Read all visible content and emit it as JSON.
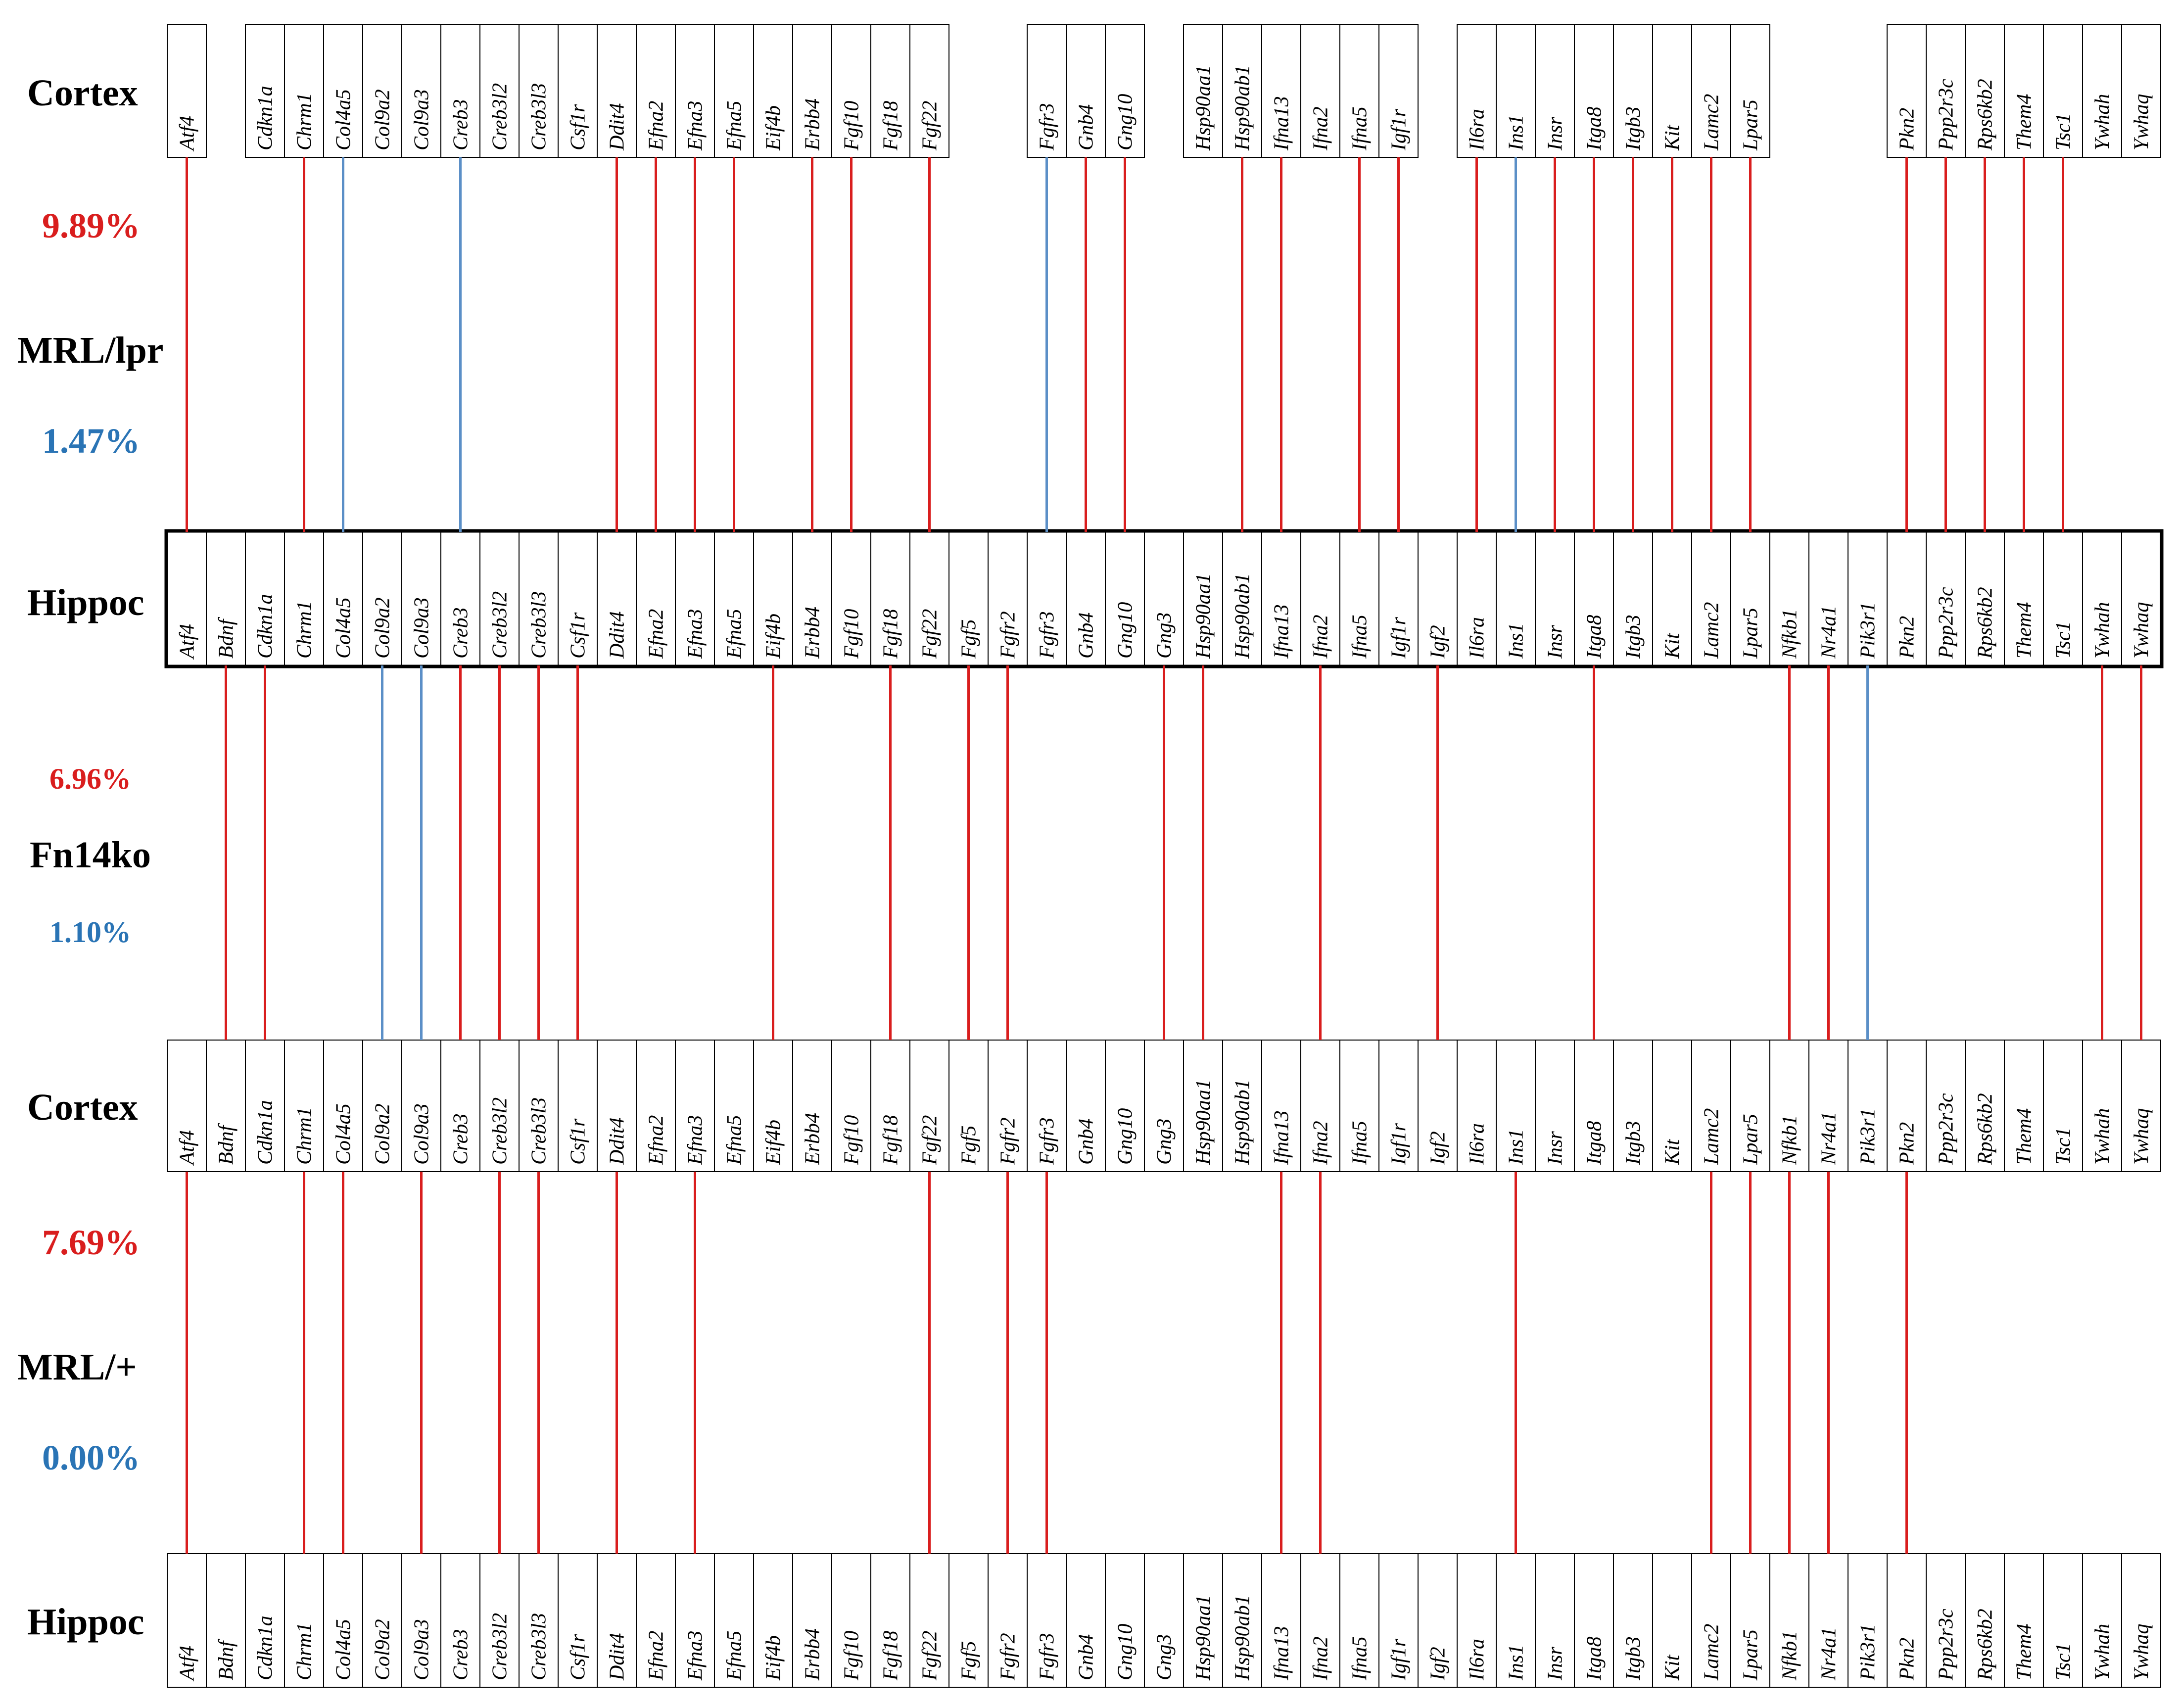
{
  "colors": {
    "up": "#d91e1e",
    "down": "#5b8fc7",
    "border": "#000000"
  },
  "genes": [
    "Atf4",
    "Bdnf",
    "Cdkn1a",
    "Chrm1",
    "Col4a5",
    "Col9a2",
    "Col9a3",
    "Creb3",
    "Creb3l2",
    "Creb3l3",
    "Csf1r",
    "Ddit4",
    "Efna2",
    "Efna3",
    "Efna5",
    "Eif4b",
    "Erbb4",
    "Fgf10",
    "Fgf18",
    "Fgf22",
    "Fgf5",
    "Fgfr2",
    "Fgfr3",
    "Gnb4",
    "Gng10",
    "Gng3",
    "Hsp90aa1",
    "Hsp90ab1",
    "Ifna13",
    "Ifna2",
    "Ifna5",
    "Igf1r",
    "Igf2",
    "Il6ra",
    "Ins1",
    "Insr",
    "Itga8",
    "Itgb3",
    "Kit",
    "Lamc2",
    "Lpar5",
    "Nfkb1",
    "Nr4a1",
    "Pik3r1",
    "Pkn2",
    "Ppp2r3c",
    "Rps6kb2",
    "Them4",
    "Tsc1",
    "Ywhah",
    "Ywhaq"
  ],
  "rows": [
    {
      "region": "Cortex",
      "missing": [
        "Bdnf",
        "Fgf5",
        "Fgfr2",
        "Gng3",
        "Igf2",
        "Nfkb1",
        "Nr4a1",
        "Pik3r1"
      ]
    },
    {
      "region": "Hippoc",
      "missing": []
    },
    {
      "region": "Cortex",
      "missing": []
    },
    {
      "region": "Hippoc",
      "missing": []
    }
  ],
  "comparisons": [
    {
      "strain": "MRL/lpr",
      "up_pct": "9.89%",
      "down_pct": "1.47%",
      "up": [
        [
          "Atf4",
          "Atf4"
        ],
        [
          "Chrm1",
          "Chrm1"
        ],
        [
          "Ddit4",
          "Ddit4"
        ],
        [
          "Efna2",
          "Efna2"
        ],
        [
          "Efna3",
          "Efna3"
        ],
        [
          "Efna5",
          "Efna5"
        ],
        [
          "Erbb4",
          "Erbb4"
        ],
        [
          "Fgf10",
          "Fgf10"
        ],
        [
          "Fgf22",
          "Fgf22"
        ],
        [
          "Gnb4",
          "Gnb4"
        ],
        [
          "Gng10",
          "Gng10"
        ],
        [
          "Hsp90ab1",
          "Hsp90ab1"
        ],
        [
          "Ifna13",
          "Ifna13"
        ],
        [
          "Ifna5",
          "Ifna5"
        ],
        [
          "Igf1r",
          "Igf1r"
        ],
        [
          "Il6ra",
          "Il6ra"
        ],
        [
          "Insr",
          "Insr"
        ],
        [
          "Itga8",
          "Itga8"
        ],
        [
          "Itgb3",
          "Itgb3"
        ],
        [
          "Kit",
          "Kit"
        ],
        [
          "Lamc2",
          "Lamc2"
        ],
        [
          "Lpar5",
          "Lpar5"
        ],
        [
          "Pkn2",
          "Pkn2"
        ],
        [
          "Ppp2r3c",
          "Ppp2r3c"
        ],
        [
          "Rps6kb2",
          "Rps6kb2"
        ],
        [
          "Them4",
          "Them4"
        ],
        [
          "Tsc1",
          "Tsc1"
        ]
      ],
      "down": [
        [
          "Col4a5",
          "Col4a5"
        ],
        [
          "Creb3",
          "Creb3"
        ],
        [
          "Fgfr3",
          "Fgfr3"
        ],
        [
          "Ins1",
          "Ins1"
        ]
      ]
    },
    {
      "strain": "Fn14ko",
      "up_pct": "6.96%",
      "down_pct": "1.10%",
      "up": [
        [
          "Bdnf",
          "Bdnf"
        ],
        [
          "Cdkn1a",
          "Cdkn1a"
        ],
        [
          "Creb3",
          "Creb3"
        ],
        [
          "Creb3l2",
          "Creb3l2"
        ],
        [
          "Creb3l3",
          "Creb3l3"
        ],
        [
          "Csf1r",
          "Csf1r"
        ],
        [
          "Eif4b",
          "Eif4b"
        ],
        [
          "Fgf18",
          "Fgf18"
        ],
        [
          "Fgf5",
          "Fgf5"
        ],
        [
          "Fgfr2",
          "Fgfr2"
        ],
        [
          "Gng3",
          "Gng3"
        ],
        [
          "Hsp90aa1",
          "Hsp90aa1"
        ],
        [
          "Ifna2",
          "Ifna2"
        ],
        [
          "Igf2",
          "Igf2"
        ],
        [
          "Itga8",
          "Itga8"
        ],
        [
          "Nfkb1",
          "Nfkb1"
        ],
        [
          "Nr4a1",
          "Nr4a1"
        ],
        [
          "Ywhah",
          "Ywhah"
        ],
        [
          "Ywhaq",
          "Ywhaq"
        ]
      ],
      "down": [
        [
          "Col9a2",
          "Col9a2"
        ],
        [
          "Col9a3",
          "Col9a3"
        ],
        [
          "Pik3r1",
          "Pik3r1"
        ]
      ]
    },
    {
      "strain": "MRL/+",
      "up_pct": "7.69%",
      "down_pct": "0.00%",
      "up": [
        [
          "Atf4",
          "Atf4"
        ],
        [
          "Chrm1",
          "Chrm1"
        ],
        [
          "Col4a5",
          "Col4a5"
        ],
        [
          "Col9a3",
          "Col9a3"
        ],
        [
          "Creb3l2",
          "Creb3l2"
        ],
        [
          "Creb3l3",
          "Creb3l3"
        ],
        [
          "Ddit4",
          "Ddit4"
        ],
        [
          "Efna3",
          "Efna3"
        ],
        [
          "Fgf22",
          "Fgf22"
        ],
        [
          "Fgfr2",
          "Fgfr2"
        ],
        [
          "Fgfr3",
          "Fgfr3"
        ],
        [
          "Ifna13",
          "Ifna13"
        ],
        [
          "Ifna2",
          "Ifna2"
        ],
        [
          "Ins1",
          "Ins1"
        ],
        [
          "Lamc2",
          "Lamc2"
        ],
        [
          "Lpar5",
          "Lpar5"
        ],
        [
          "Nfkb1",
          "Nfkb1"
        ],
        [
          "Nr4a1",
          "Nr4a1"
        ],
        [
          "Pkn2",
          "Pkn2"
        ]
      ],
      "down": []
    }
  ]
}
